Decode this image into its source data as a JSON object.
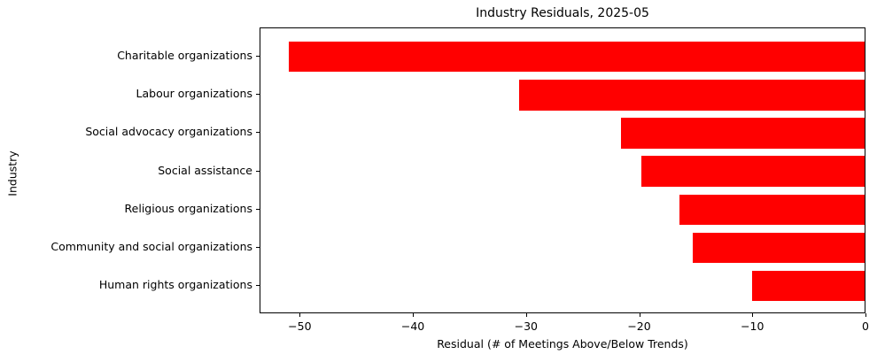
{
  "chart_data": {
    "type": "bar",
    "orientation": "horizontal",
    "title": "Industry Residuals, 2025-05",
    "xlabel": "Residual (# of Meetings Above/Below Trends)",
    "ylabel": "Industry",
    "categories": [
      "Charitable organizations",
      "Labour organizations",
      "Social advocacy organizations",
      "Social assistance",
      "Religious organizations",
      "Community and social organizations",
      "Human rights organizations"
    ],
    "values": [
      -51.0,
      -30.6,
      -21.6,
      -19.8,
      -16.4,
      -15.2,
      -10.0
    ],
    "bar_color": "#ff0000",
    "xlim": [
      -53.55,
      0
    ],
    "xticks": [
      -50,
      -40,
      -30,
      -20,
      -10,
      0
    ],
    "xtick_labels": [
      "−50",
      "−40",
      "−30",
      "−20",
      "−10",
      "0"
    ],
    "grid": false,
    "legend_position": "none",
    "colors": {
      "bar": "#ff0000",
      "text": "#000000",
      "spine": "#000000",
      "background": "#ffffff"
    }
  }
}
